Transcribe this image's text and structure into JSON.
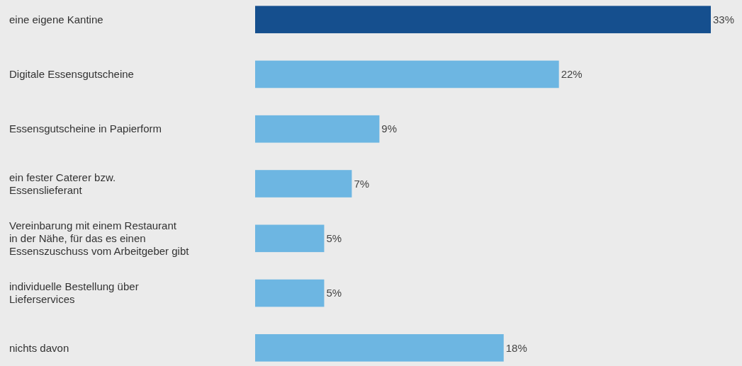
{
  "chart_data": {
    "type": "bar",
    "orientation": "horizontal",
    "categories": [
      "eine eigene Kantine",
      "Digitale Essensgutscheine",
      "Essensgutscheine in Papierform",
      "ein fester Caterer bzw.\nEssenslieferant",
      "Vereinbarung mit einem Restaurant\nin der Nähe, für das es einen\nEssenszuschuss vom Arbeitgeber gibt",
      "individuelle Bestellung über\nLieferservices",
      "nichts davon"
    ],
    "values": [
      33,
      22,
      9,
      7,
      5,
      5,
      18
    ],
    "colors": [
      "#154f8e",
      "#6db6e2",
      "#6db6e2",
      "#6db6e2",
      "#6db6e2",
      "#6db6e2",
      "#6db6e2"
    ],
    "value_labels": [
      "33%",
      "22%",
      "9%",
      "7%",
      "5%",
      "5%",
      "18%"
    ]
  }
}
